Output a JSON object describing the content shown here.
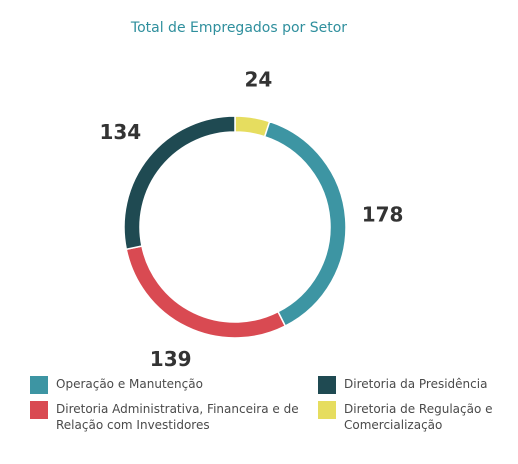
{
  "chart_data": {
    "type": "pie",
    "title": "Total de Empregados por Setor",
    "categories": [
      "Diretoria de Regulação e Comercialização",
      "Operação e Manutenção",
      "Diretoria Administrativa, Financeira e de Relação com Investidores",
      "Diretoria da Presidência"
    ],
    "values": [
      24,
      178,
      139,
      134
    ],
    "colors": [
      "#e6dd5f",
      "#3d95a3",
      "#d94a52",
      "#1f4a52"
    ],
    "donut": true,
    "legend_position": "bottom"
  },
  "legend": {
    "items": [
      {
        "label": "Operação e Manutenção",
        "color": "#3d95a3"
      },
      {
        "label": "Diretoria da Presidência",
        "color": "#1f4a52"
      },
      {
        "label": "Diretoria Administrativa, Financeira e de Relação com Investidores",
        "color": "#d94a52"
      },
      {
        "label": "Diretoria de Regulação e Comercialização",
        "color": "#e6dd5f"
      }
    ]
  }
}
